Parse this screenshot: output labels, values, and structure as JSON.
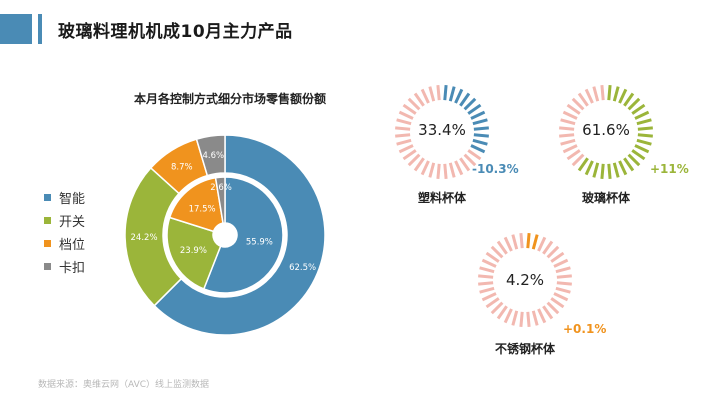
{
  "header": {
    "title": "玻璃料理机机成10月主力产品"
  },
  "chart_data": [
    {
      "type": "pie",
      "title": "本月各控制方式细分市场零售额份额",
      "categories": [
        "智能",
        "开关",
        "档位",
        "卡扣"
      ],
      "series": [
        {
          "values": [
            62.5,
            24.2,
            8.7,
            4.6
          ]
        },
        {
          "values": [
            55.9,
            23.9,
            17.5,
            2.6
          ]
        }
      ],
      "legend_position": "left",
      "colors": [
        "#4a8bb5",
        "#9bb53a",
        "#f0931e",
        "#8a8a8a"
      ]
    },
    {
      "type": "pie",
      "title": "塑料杯体",
      "values": [
        33.4
      ],
      "annotations": [
        "-10.3%"
      ],
      "colors": [
        "#4a8bb5",
        "#f2b8b0"
      ]
    },
    {
      "type": "pie",
      "title": "玻璃杯体",
      "values": [
        61.6
      ],
      "annotations": [
        "+11%"
      ],
      "colors": [
        "#9bb53a",
        "#f2b8b0"
      ]
    },
    {
      "type": "pie",
      "title": "不锈钢杯体",
      "values": [
        4.2
      ],
      "annotations": [
        "+0.1%"
      ],
      "colors": [
        "#f0931e",
        "#f2b8b0"
      ]
    }
  ],
  "donut_labels": {
    "outer": [
      "62.5%",
      "24.2%",
      "8.7%",
      "4.6%"
    ],
    "inner": [
      "55.9%",
      "23.9%",
      "17.5%",
      "2.6%"
    ]
  },
  "kpis": [
    {
      "value": "33.4%",
      "change": "-10.3%",
      "label": "塑料杯体",
      "change_color": "#4a8bb5"
    },
    {
      "value": "61.6%",
      "change": "+11%",
      "label": "玻璃杯体",
      "change_color": "#9bb53a"
    },
    {
      "value": "4.2%",
      "change": "+0.1%",
      "label": "不锈钢杯体",
      "change_color": "#f0931e"
    }
  ],
  "footer": {
    "source": "数据来源：奥维云网（AVC）线上监测数据"
  }
}
